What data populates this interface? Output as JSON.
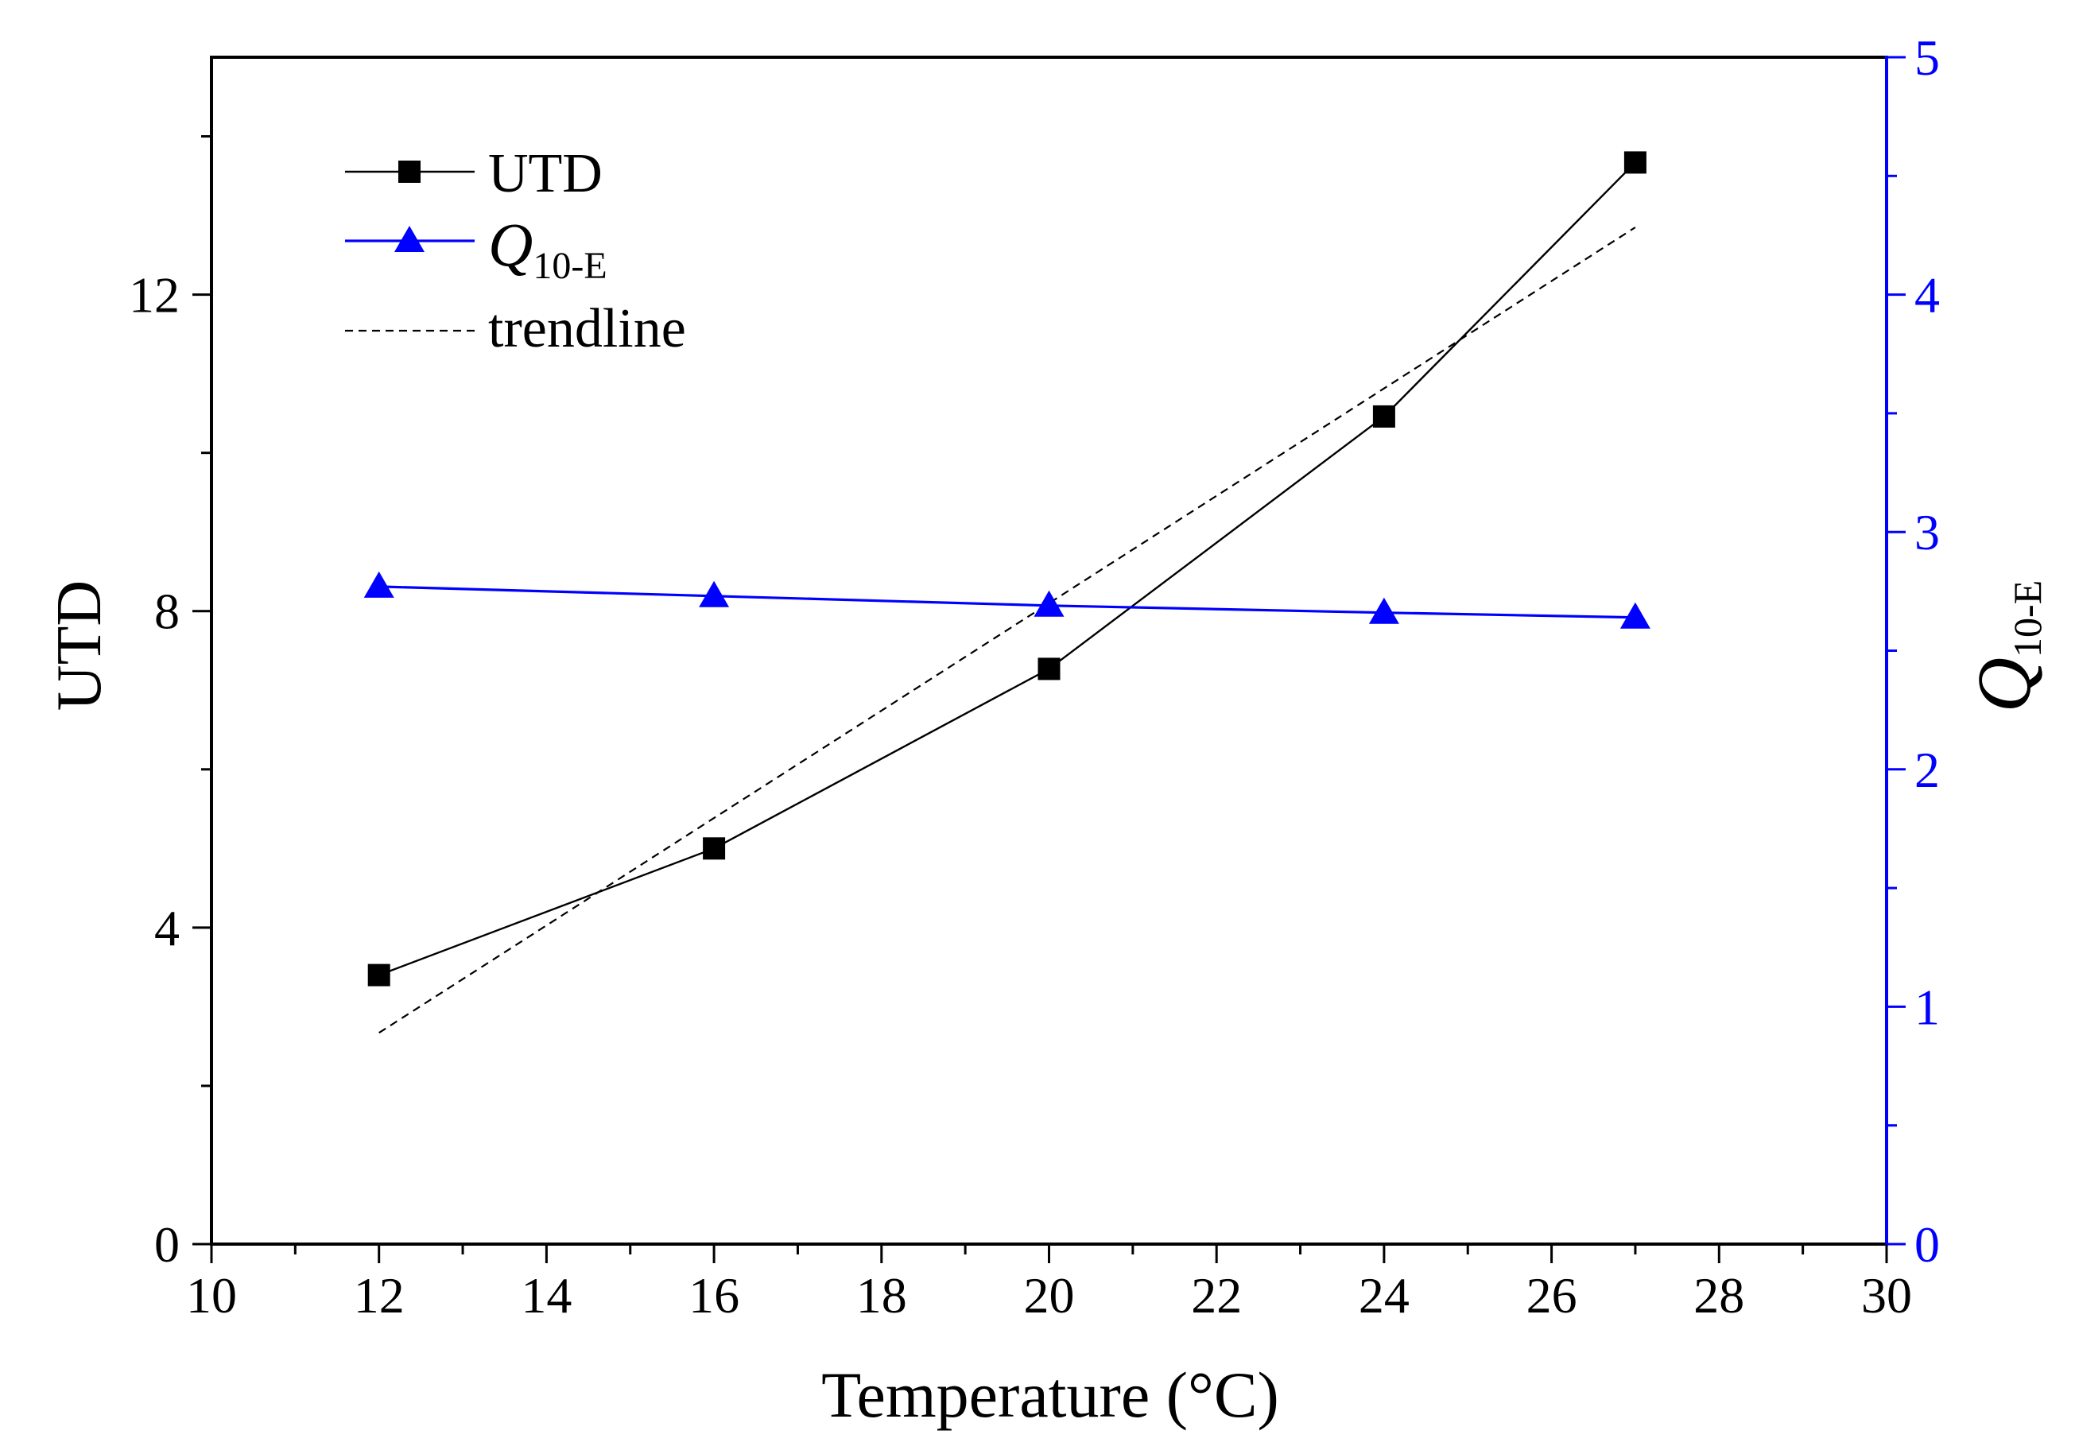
{
  "chart_data": {
    "type": "line",
    "xlabel": "Temperature (°C)",
    "ylabel": "UTD",
    "y2label_main": "Q",
    "y2label_sub": "10-E",
    "xlim": [
      10,
      30
    ],
    "ylim": [
      0,
      15
    ],
    "y2lim": [
      0,
      5
    ],
    "xticks": [
      10,
      12,
      14,
      16,
      18,
      20,
      22,
      24,
      26,
      28,
      30
    ],
    "xtick_labels": [
      "10",
      "12",
      "14",
      "16",
      "18",
      "20",
      "22",
      "24",
      "26",
      "28",
      "30"
    ],
    "x_minor_ticks": [
      11,
      13,
      15,
      17,
      19,
      21,
      23,
      25,
      27,
      29
    ],
    "yticks": [
      0,
      4,
      8,
      12
    ],
    "ytick_labels": [
      "0",
      "4",
      "8",
      "12"
    ],
    "y_minor_ticks": [
      2,
      6,
      10,
      14
    ],
    "y2ticks": [
      0,
      1,
      2,
      3,
      4,
      5
    ],
    "y2tick_labels": [
      "0",
      "1",
      "2",
      "3",
      "4",
      "5"
    ],
    "y2_minor_ticks": [
      0.5,
      1.5,
      2.5,
      3.5,
      4.5
    ],
    "grid": false,
    "legend_position": "top-left",
    "colors": {
      "axis": "#000000",
      "secondary_axis": "#0000FF"
    },
    "series": [
      {
        "name": "UTD",
        "y_axis": "left",
        "marker": "square",
        "line_style": "solid",
        "color": "#000000",
        "x": [
          12,
          16,
          20,
          24,
          27
        ],
        "y": [
          3.4,
          5.0,
          7.27,
          10.46,
          13.67
        ]
      },
      {
        "name_main": "Q",
        "name_sub": "10-E",
        "y_axis": "right",
        "marker": "triangle",
        "line_style": "solid",
        "color": "#0000FF",
        "x": [
          12,
          16,
          20,
          24,
          27
        ],
        "y": [
          2.77,
          2.73,
          2.69,
          2.66,
          2.64
        ]
      },
      {
        "name": "trendline",
        "y_axis": "left",
        "marker": "none",
        "line_style": "dashed",
        "color": "#000000",
        "x": [
          12,
          27
        ],
        "y": [
          2.67,
          12.85
        ]
      }
    ]
  }
}
